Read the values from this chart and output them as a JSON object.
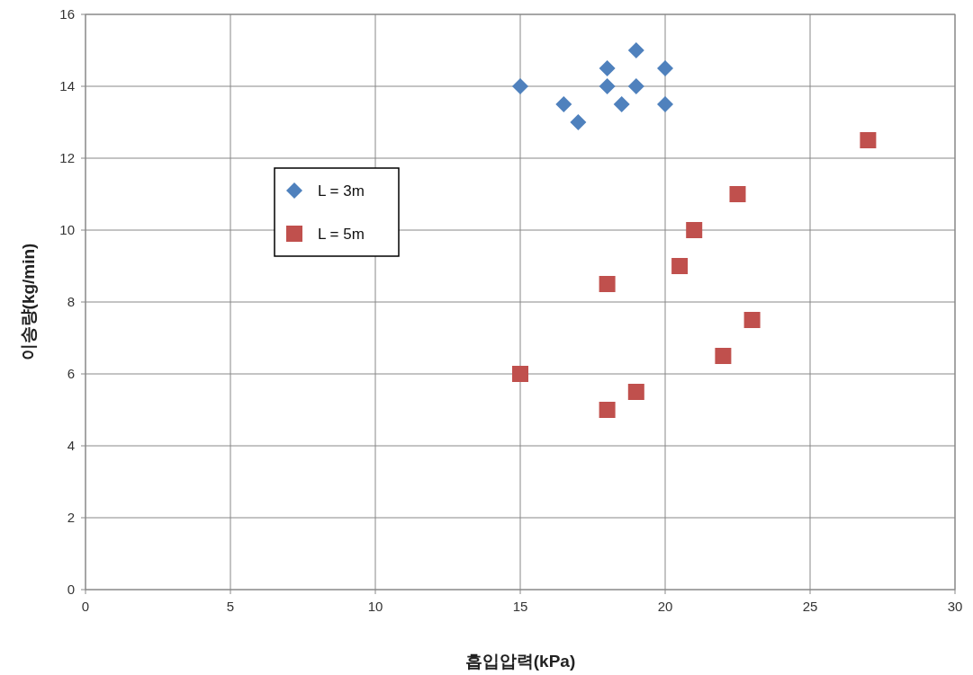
{
  "chart_data": {
    "type": "scatter",
    "xlabel": "흡입압력(kPa)",
    "ylabel": "이송량(kg/min)",
    "xlim": [
      0,
      30
    ],
    "xticks": [
      0,
      5,
      10,
      15,
      20,
      25,
      30
    ],
    "ylim": [
      0,
      16
    ],
    "yticks": [
      0,
      2,
      4,
      6,
      8,
      10,
      12,
      14,
      16
    ],
    "grid": true,
    "legend": "left",
    "series": [
      {
        "name": "L = 3m",
        "color": "#4f81bd",
        "marker": "diamond",
        "x": [
          15,
          16.5,
          17,
          18,
          18,
          18.5,
          19,
          19,
          20,
          20
        ],
        "values": [
          14,
          13.5,
          13,
          14.5,
          14,
          13.5,
          15,
          14,
          14.5,
          13.5
        ]
      },
      {
        "name": "L = 5m",
        "color": "#c0504d",
        "marker": "square",
        "x": [
          15,
          18,
          18,
          19,
          20.5,
          21,
          22,
          22.5,
          23,
          27
        ],
        "values": [
          6,
          8.5,
          5,
          5.5,
          9,
          10,
          6.5,
          11,
          7.5,
          12.5
        ]
      }
    ]
  }
}
